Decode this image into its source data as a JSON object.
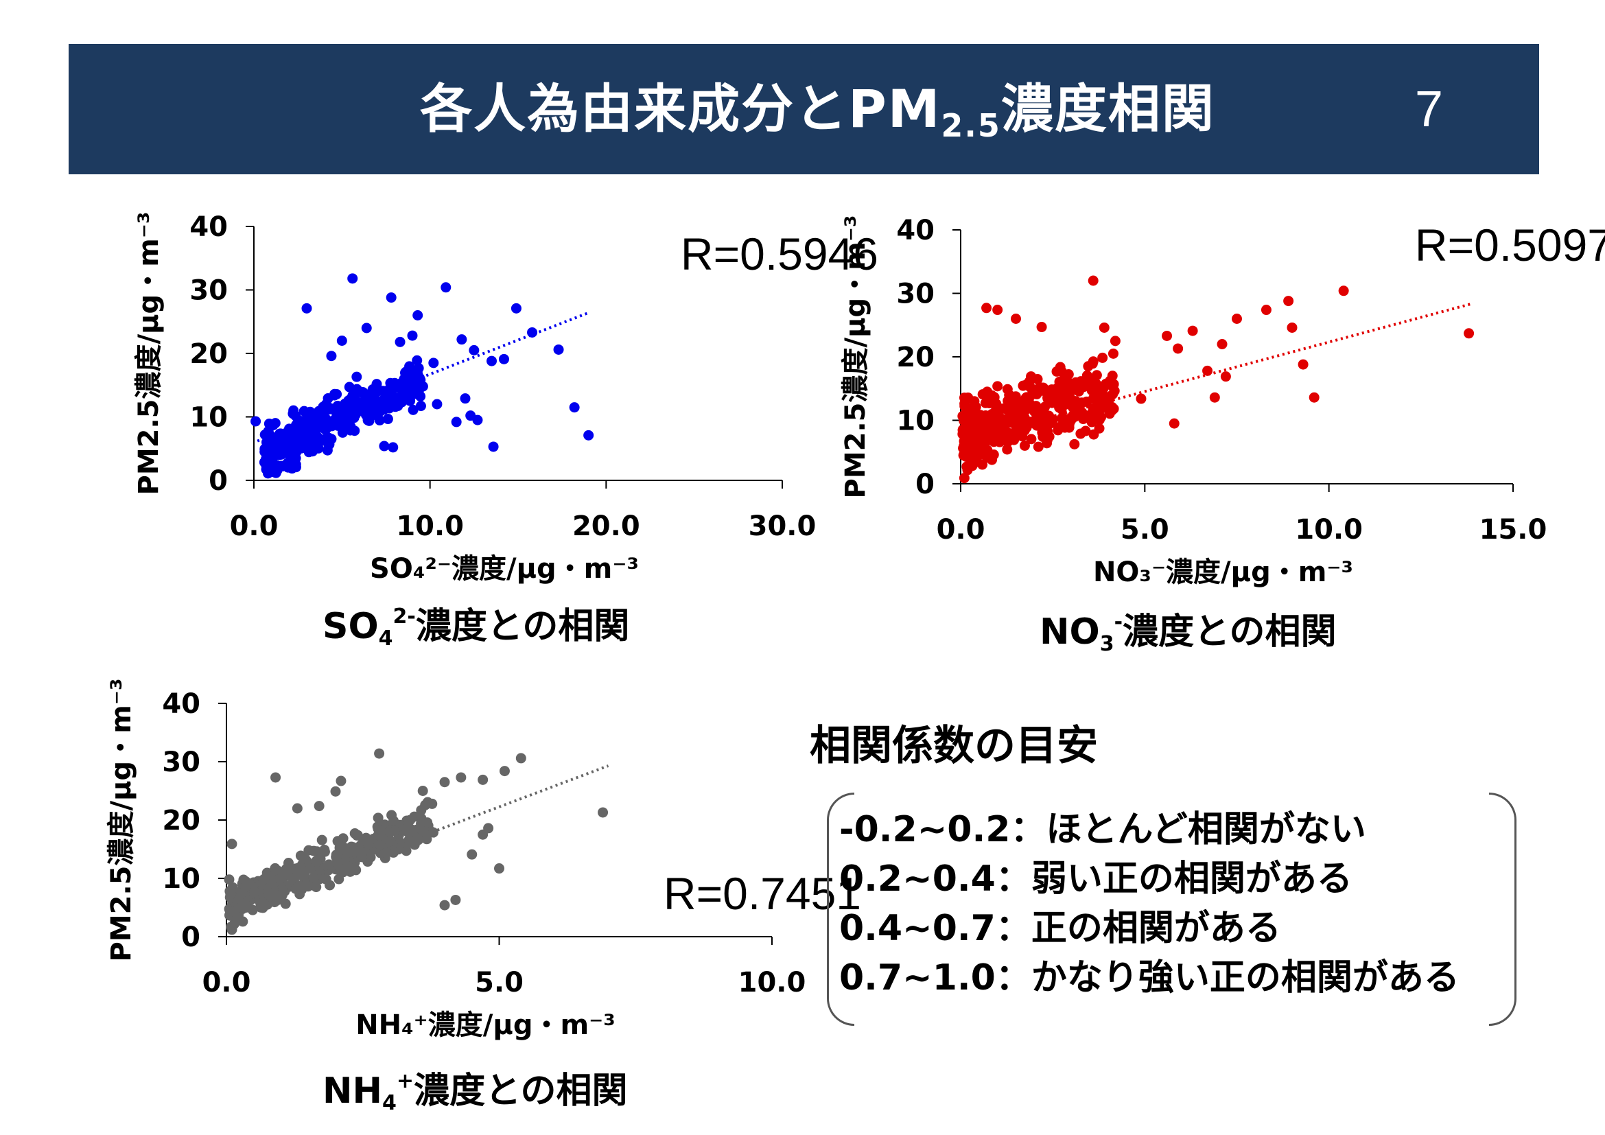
{
  "header": {
    "title_main": "各人為由来成分とPM",
    "title_sub": "2.5",
    "title_end": "濃度相関",
    "page_number": "7"
  },
  "colors": {
    "header_bg": "#1d3a5f",
    "so4": "#0000ee",
    "no3": "#e00000",
    "nh4": "#666666"
  },
  "chart_data": [
    {
      "id": "so4",
      "type": "scatter",
      "color": "#0000ee",
      "r_label": "R=0.5946",
      "ylabel": "PM2.5濃度/μg・m⁻³",
      "xlabel": "SO₄²⁻濃度/μg・m⁻³",
      "xlim": [
        0,
        30
      ],
      "ylim": [
        0,
        40
      ],
      "xticks": [
        0,
        10,
        20,
        30
      ],
      "xtick_labels": [
        "0.0",
        "10.0",
        "20.0",
        "30.0"
      ],
      "yticks": [
        0,
        10,
        20,
        30,
        40
      ],
      "ytick_labels": [
        "0",
        "10",
        "20",
        "30",
        "40"
      ],
      "trendline": {
        "x0": 0.2,
        "y0": 6.2,
        "x1": 19.0,
        "y1": 26.4
      },
      "seed": 11,
      "n_cluster": 340,
      "cluster": {
        "xmin": 0.6,
        "xmax": 9.5,
        "slope": 1.25,
        "intercept": 3.5,
        "noise": 3.4
      },
      "points": [
        [
          5.6,
          31.8
        ],
        [
          10.9,
          30.4
        ],
        [
          3.0,
          27.1
        ],
        [
          7.8,
          28.8
        ],
        [
          9.3,
          26.0
        ],
        [
          14.9,
          27.1
        ],
        [
          15.8,
          23.3
        ],
        [
          17.3,
          20.6
        ],
        [
          18.2,
          11.5
        ],
        [
          19.0,
          7.1
        ],
        [
          11.8,
          22.2
        ],
        [
          12.5,
          20.5
        ],
        [
          13.5,
          18.8
        ],
        [
          14.2,
          19.1
        ],
        [
          12.0,
          12.9
        ],
        [
          12.3,
          10.2
        ],
        [
          12.7,
          9.5
        ],
        [
          13.6,
          5.3
        ],
        [
          11.5,
          9.2
        ],
        [
          7.4,
          5.4
        ],
        [
          7.9,
          5.2
        ],
        [
          1.6,
          2.2
        ],
        [
          0.8,
          1.1
        ],
        [
          10.4,
          12.0
        ],
        [
          9.6,
          14.8
        ],
        [
          9.0,
          22.8
        ],
        [
          8.3,
          21.8
        ],
        [
          6.4,
          24.0
        ],
        [
          5.0,
          22.0
        ],
        [
          4.4,
          19.6
        ],
        [
          10.2,
          18.5
        ],
        [
          8.8,
          17.0
        ],
        [
          0.1,
          9.3
        ]
      ]
    },
    {
      "id": "no3",
      "type": "scatter",
      "color": "#e00000",
      "r_label": "R=0.5097",
      "ylabel": "PM2.5濃度/μg・m⁻³",
      "xlabel": "NO₃⁻濃度/μg・m⁻³",
      "xlim": [
        0,
        15
      ],
      "ylim": [
        0,
        40
      ],
      "xticks": [
        0,
        5,
        10,
        15
      ],
      "xtick_labels": [
        "0.0",
        "5.0",
        "10.0",
        "15.0"
      ],
      "yticks": [
        0,
        10,
        20,
        30,
        40
      ],
      "ytick_labels": [
        "0",
        "10",
        "20",
        "30",
        "40"
      ],
      "trendline": {
        "x0": 0.1,
        "y0": 6.9,
        "x1": 13.9,
        "y1": 28.4
      },
      "seed": 23,
      "n_cluster": 380,
      "cluster": {
        "xmin": 0.05,
        "xmax": 4.2,
        "slope": 1.6,
        "intercept": 8.0,
        "noise": 4.6
      },
      "points": [
        [
          3.6,
          32.0
        ],
        [
          10.4,
          30.4
        ],
        [
          8.9,
          28.8
        ],
        [
          8.3,
          27.4
        ],
        [
          7.5,
          26.0
        ],
        [
          9.0,
          24.6
        ],
        [
          9.3,
          18.8
        ],
        [
          9.6,
          13.6
        ],
        [
          13.8,
          23.7
        ],
        [
          7.1,
          22.0
        ],
        [
          6.3,
          24.1
        ],
        [
          5.6,
          23.3
        ],
        [
          5.9,
          21.3
        ],
        [
          6.7,
          17.8
        ],
        [
          7.2,
          16.9
        ],
        [
          6.9,
          13.6
        ],
        [
          5.8,
          9.5
        ],
        [
          4.9,
          13.4
        ],
        [
          3.9,
          24.6
        ],
        [
          4.2,
          22.5
        ],
        [
          0.7,
          27.7
        ],
        [
          1.0,
          27.4
        ],
        [
          1.5,
          26.0
        ],
        [
          2.2,
          24.7
        ],
        [
          0.1,
          0.9
        ],
        [
          0.3,
          3.6
        ]
      ]
    },
    {
      "id": "nh4",
      "type": "scatter",
      "color": "#666666",
      "r_label": "R=0.7451",
      "ylabel": "PM2.5濃度/μg・m⁻³",
      "xlabel": "NH₄⁺濃度/μg・m⁻³",
      "xlim": [
        0,
        10
      ],
      "ylim": [
        0,
        40
      ],
      "xticks": [
        0,
        5,
        10
      ],
      "xtick_labels": [
        "0.0",
        "5.0",
        "10.0"
      ],
      "yticks": [
        0,
        10,
        20,
        30,
        40
      ],
      "ytick_labels": [
        "0",
        "10",
        "20",
        "30",
        "40"
      ],
      "trendline": {
        "x0": 0.1,
        "y0": 5.0,
        "x1": 7.0,
        "y1": 29.3
      },
      "seed": 37,
      "n_cluster": 360,
      "cluster": {
        "xmin": 0.05,
        "xmax": 3.8,
        "slope": 4.0,
        "intercept": 5.0,
        "noise": 2.8
      },
      "points": [
        [
          2.8,
          31.4
        ],
        [
          5.4,
          30.6
        ],
        [
          5.1,
          28.4
        ],
        [
          4.7,
          26.9
        ],
        [
          4.3,
          27.3
        ],
        [
          4.0,
          26.5
        ],
        [
          3.6,
          25.0
        ],
        [
          0.9,
          27.3
        ],
        [
          2.1,
          26.7
        ],
        [
          2.0,
          24.9
        ],
        [
          1.3,
          22.0
        ],
        [
          6.9,
          21.3
        ],
        [
          4.7,
          17.5
        ],
        [
          4.2,
          6.3
        ],
        [
          4.0,
          5.4
        ],
        [
          4.5,
          14.1
        ],
        [
          5.0,
          11.7
        ],
        [
          4.8,
          18.6
        ],
        [
          0.1,
          15.9
        ],
        [
          0.05,
          9.8
        ],
        [
          0.1,
          1.2
        ],
        [
          0.3,
          2.6
        ],
        [
          1.7,
          22.4
        ],
        [
          3.3,
          18.3
        ]
      ]
    }
  ],
  "captions": {
    "so4": {
      "base": "SO",
      "sub": "4",
      "sup": "2-",
      "rest": "濃度との相関"
    },
    "no3": {
      "base": "NO",
      "sub": "3",
      "sup": "-",
      "rest": "濃度との相関"
    },
    "nh4": {
      "base": "NH",
      "sub": "4",
      "sup": "+",
      "rest": "濃度との相関"
    }
  },
  "guide": {
    "title": "相関係数の目安",
    "rows": [
      {
        "range": "-0.2~0.2",
        "sep": "：",
        "text": "ほとんど相関がない"
      },
      {
        "range": "0.2~0.4",
        "sep": "：",
        "text": "弱い正の相関がある"
      },
      {
        "range": "0.4~0.7",
        "sep": "：",
        "text": "正の相関がある"
      },
      {
        "range": "0.7~1.0",
        "sep": "：",
        "text": "かなり強い正の相関がある"
      }
    ]
  }
}
